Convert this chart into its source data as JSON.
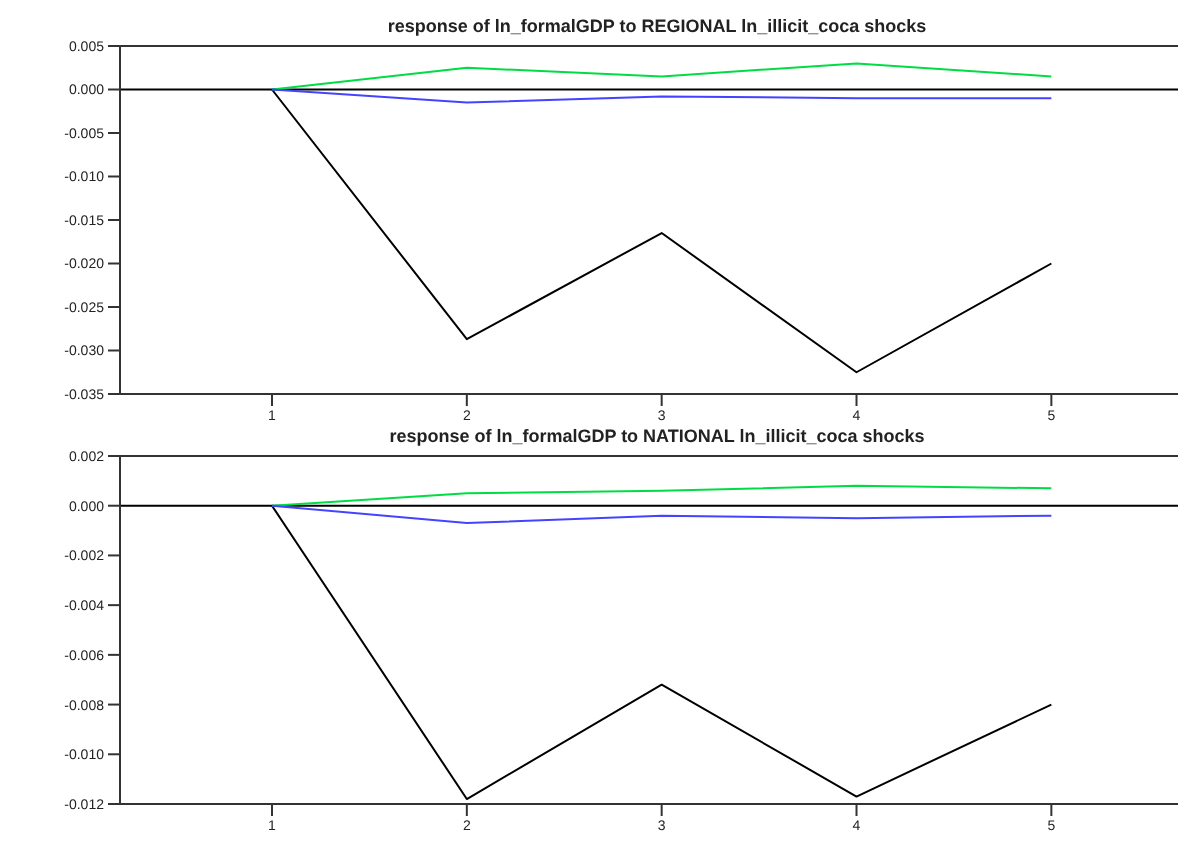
{
  "chart_data": [
    {
      "type": "line",
      "title": "response of ln_formalGDP to REGIONAL ln_illicit_coca shocks",
      "x": [
        1,
        2,
        3,
        4,
        5
      ],
      "xlim": [
        0.22,
        5.65
      ],
      "xticks": [
        1,
        2,
        3,
        4,
        5
      ],
      "ylim": [
        -0.035,
        0.005
      ],
      "yticks": [
        {
          "value": 0.005,
          "label": "0.005"
        },
        {
          "value": 0,
          "label": "0.000"
        },
        {
          "value": -0.005,
          "label": "-0.005"
        },
        {
          "value": -0.01,
          "label": "-0.010"
        },
        {
          "value": -0.015,
          "label": "-0.015"
        },
        {
          "value": -0.02,
          "label": "-0.020"
        },
        {
          "value": -0.025,
          "label": "-0.025"
        },
        {
          "value": -0.03,
          "label": "-0.030"
        },
        {
          "value": -0.035,
          "label": "-0.035"
        }
      ],
      "series": [
        {
          "color": "#000000",
          "values": [
            0,
            -0.0287,
            -0.0165,
            -0.0325,
            -0.02
          ]
        },
        {
          "color": "#00dd44",
          "values": [
            0,
            0.0025,
            0.0015,
            0.003,
            0.0015
          ]
        },
        {
          "color": "#4444ff",
          "values": [
            0,
            -0.0015,
            -0.0008,
            -0.001,
            -0.001
          ]
        }
      ],
      "ref_lines": [
        {
          "axis": "y",
          "value": 0,
          "color": "#000000"
        }
      ],
      "marker": "none"
    },
    {
      "type": "line",
      "title": "response of ln_formalGDP to NATIONAL ln_illicit_coca shocks",
      "x": [
        1,
        2,
        3,
        4,
        5
      ],
      "xlim": [
        0.22,
        5.65
      ],
      "xticks": [
        1,
        2,
        3,
        4,
        5
      ],
      "ylim": [
        -0.012,
        0.002
      ],
      "yticks": [
        {
          "value": 0.002,
          "label": "0.002"
        },
        {
          "value": 0,
          "label": "0.000"
        },
        {
          "value": -0.002,
          "label": "-0.002"
        },
        {
          "value": -0.004,
          "label": "-0.004"
        },
        {
          "value": -0.006,
          "label": "-0.006"
        },
        {
          "value": -0.008,
          "label": "-0.008"
        },
        {
          "value": -0.01,
          "label": "-0.010"
        },
        {
          "value": -0.012,
          "label": "-0.012"
        }
      ],
      "series": [
        {
          "color": "#000000",
          "values": [
            0,
            -0.0118,
            -0.0072,
            -0.0117,
            -0.008
          ]
        },
        {
          "color": "#00dd44",
          "values": [
            0,
            0.0005,
            0.0006,
            0.0008,
            0.0007
          ]
        },
        {
          "color": "#4444ff",
          "values": [
            0,
            -0.0007,
            -0.0004,
            -0.0005,
            -0.0004
          ]
        }
      ],
      "ref_lines": [
        {
          "axis": "y",
          "value": 0,
          "color": "#000000"
        }
      ],
      "marker": "none"
    }
  ]
}
